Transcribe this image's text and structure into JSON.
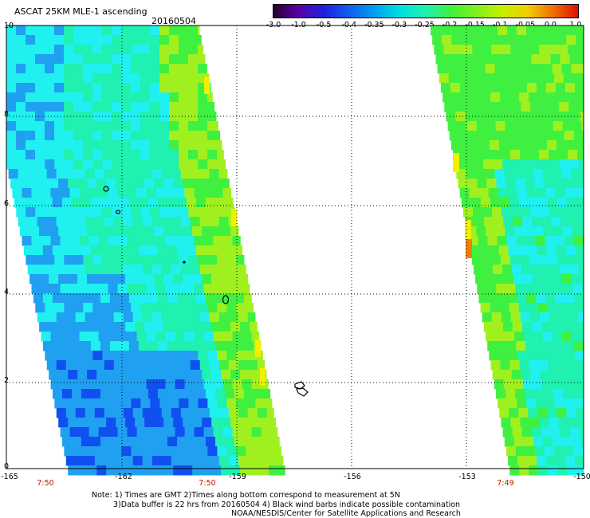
{
  "header": {
    "title": "ASCAT 25KM MLE-1 ascending",
    "date": "20160504"
  },
  "colorbar": {
    "labels": [
      "-3.0",
      "-1.0",
      "-0.5",
      "-0.4",
      "-0.35",
      "-0.3",
      "-0.25",
      "-0.2",
      "-0.15",
      "-0.1",
      "-0.05",
      "0.0",
      "1.0"
    ],
    "colors": [
      "#2a0030",
      "#5a00a8",
      "#2020e0",
      "#1060f0",
      "#00a0f0",
      "#00e0e0",
      "#20f0b0",
      "#40f040",
      "#80f020",
      "#c8f000",
      "#f0d000",
      "#f07000",
      "#e01000"
    ]
  },
  "axes": {
    "y_ticks": [
      "10",
      "8",
      "6",
      "4",
      "2",
      "0"
    ],
    "x_ticks": [
      "-165",
      "-162",
      "-159",
      "-156",
      "-153",
      "-150"
    ],
    "times": [
      "7:50",
      "7:50",
      "7:49"
    ]
  },
  "notes": {
    "line1": "Note: 1) Times are GMT 2)Times along bottom correspond to measurement at 5N",
    "line2": "3)Data buffer is 22 hrs from 20160504 4) Black wind barbs indicate possible contamination",
    "line3": "NOAA/NESDIS/Center for Satellite Applications and Research"
  },
  "map_colors": {
    "deep_blue": "#1050f0",
    "blue": "#20a0f0",
    "cyan": "#20f0f0",
    "teal": "#20f0b0",
    "green": "#40f040",
    "yellow_green": "#a0f020",
    "yellow": "#f0f000",
    "orange": "#f08000",
    "grid": "#000000",
    "land": "#000000"
  }
}
